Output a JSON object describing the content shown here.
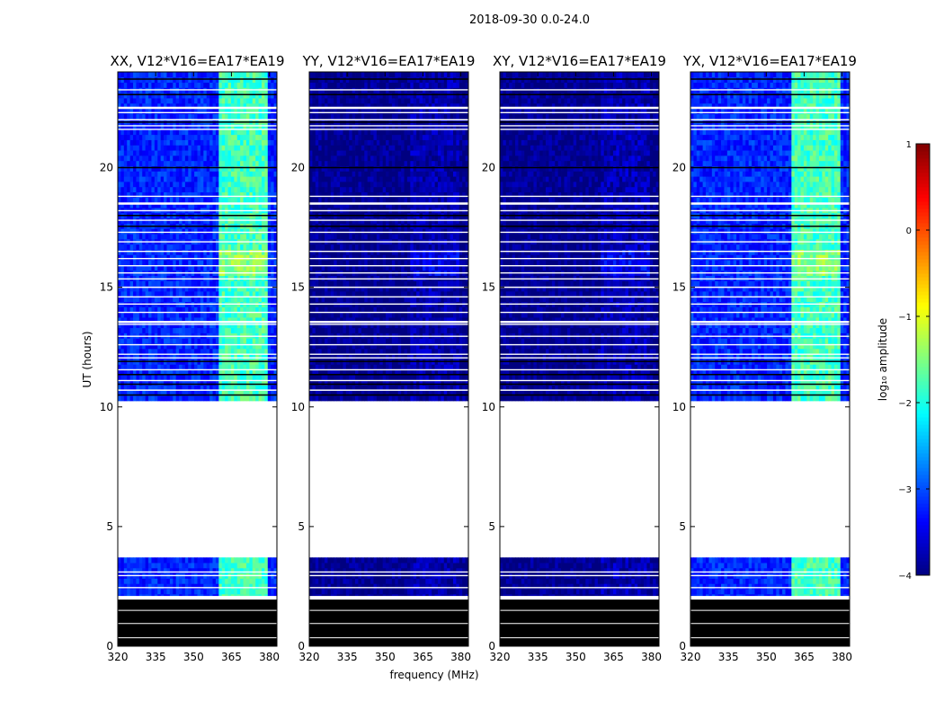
{
  "suptitle": "2018-09-30 0.0-24.0",
  "chart_data": {
    "type": "heatmap",
    "xlabel": "frequency (MHz)",
    "ylabel": "UT (hours)",
    "xlim": [
      320,
      383
    ],
    "ylim": [
      0,
      24
    ],
    "xticks": [
      320,
      335,
      350,
      365,
      380
    ],
    "yticks": [
      0,
      5,
      10,
      15,
      20
    ],
    "colorbar": {
      "label": "log₁₀ amplitude",
      "colormap": "jet",
      "range": [
        -4,
        1
      ],
      "ticks": [
        -4,
        -3,
        -2,
        -1,
        0,
        1
      ],
      "tick_labels": [
        "−4",
        "−3",
        "−2",
        "−1",
        "0",
        "1"
      ]
    },
    "no_data_hours": [
      [
        3.7,
        10.2
      ]
    ],
    "flagged_hours": [
      [
        0,
        1.95
      ]
    ],
    "rfi_band_mhz": [
      360,
      379
    ],
    "panels": [
      {
        "title": "XX, V12*V16=EA17*EA19",
        "base_log_amp": -3.2,
        "rfi_log_amp": -1.8
      },
      {
        "title": "YY, V12*V16=EA17*EA19",
        "base_log_amp": -3.95,
        "rfi_log_amp": -3.85
      },
      {
        "title": "XY, V12*V16=EA17*EA19",
        "base_log_amp": -3.95,
        "rfi_log_amp": -3.8
      },
      {
        "title": "YX, V12*V16=EA17*EA19",
        "base_log_amp": -3.2,
        "rfi_log_amp": -1.8
      }
    ]
  }
}
